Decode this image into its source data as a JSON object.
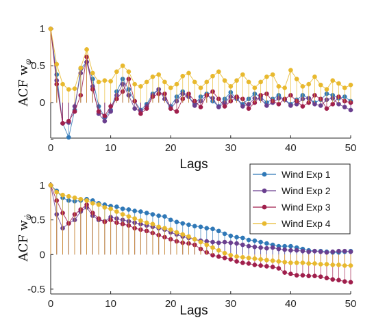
{
  "chart_data": [
    {
      "type": "stem",
      "ylabel": "ACF w_φ",
      "ylabel_main": "ACF w",
      "ylabel_sub": "φ",
      "xlabel": "Lags",
      "xlim": [
        0,
        50
      ],
      "ylim": [
        -0.48,
        1.02
      ],
      "xticks": [
        0,
        10,
        20,
        30,
        40,
        50
      ],
      "yticks": [
        -0.5,
        0,
        0.5,
        1
      ],
      "ytick_labels": [
        "",
        "0",
        "0.5",
        "1"
      ],
      "grid": false,
      "series": [
        {
          "name": "Wind Exp 1",
          "color": "#2f78b7",
          "values": [
            1.0,
            0.38,
            -0.28,
            -0.47,
            -0.1,
            0.46,
            0.55,
            0.32,
            -0.05,
            -0.2,
            -0.1,
            0.15,
            0.32,
            0.18,
            0.02,
            -0.1,
            -0.02,
            0.12,
            0.18,
            0.05,
            -0.05,
            0.08,
            0.15,
            0.08,
            -0.02,
            0.08,
            0.12,
            0.02,
            -0.05,
            0.05,
            0.14,
            0.05,
            -0.02,
            0.05,
            0.12,
            0.08,
            0.0,
            0.05,
            0.1,
            0.04,
            -0.02,
            0.04,
            0.1,
            0.06,
            0.0,
            0.04,
            0.12,
            0.1,
            0.06,
            0.08,
            0.02
          ]
        },
        {
          "name": "Wind Exp 2",
          "color": "#6a3f8f",
          "values": [
            1.0,
            0.3,
            -0.28,
            -0.27,
            -0.05,
            0.4,
            0.55,
            0.22,
            -0.15,
            -0.25,
            -0.12,
            0.1,
            0.25,
            0.1,
            -0.08,
            -0.12,
            -0.05,
            0.1,
            0.18,
            0.05,
            -0.08,
            0.02,
            0.12,
            0.08,
            -0.04,
            0.02,
            0.1,
            0.06,
            -0.06,
            0.0,
            0.08,
            0.06,
            -0.05,
            -0.02,
            0.06,
            0.05,
            -0.04,
            0.0,
            0.06,
            0.04,
            -0.04,
            -0.02,
            0.05,
            0.06,
            -0.02,
            -0.04,
            0.04,
            0.06,
            -0.02,
            -0.06,
            -0.1
          ]
        },
        {
          "name": "Wind Exp 3",
          "color": "#a01f4c",
          "values": [
            1.0,
            0.25,
            -0.28,
            -0.25,
            -0.12,
            0.1,
            0.62,
            0.18,
            -0.12,
            -0.18,
            -0.05,
            0.05,
            0.15,
            0.32,
            0.02,
            -0.15,
            -0.08,
            0.08,
            0.12,
            0.12,
            -0.08,
            -0.12,
            0.05,
            0.12,
            0.02,
            -0.06,
            0.1,
            0.15,
            0.05,
            -0.05,
            0.02,
            0.08,
            0.05,
            -0.08,
            0.0,
            0.1,
            0.12,
            0.02,
            -0.02,
            0.05,
            0.1,
            0.02,
            -0.05,
            0.0,
            0.1,
            0.05,
            -0.08,
            -0.02,
            0.08,
            0.02,
            0.0
          ]
        },
        {
          "name": "Wind Exp 4",
          "color": "#e8b92e",
          "values": [
            1.0,
            0.52,
            0.25,
            0.18,
            0.19,
            0.47,
            0.72,
            0.4,
            0.28,
            0.3,
            0.29,
            0.42,
            0.5,
            0.42,
            0.25,
            0.22,
            0.28,
            0.35,
            0.38,
            0.28,
            0.2,
            0.25,
            0.36,
            0.4,
            0.28,
            0.2,
            0.28,
            0.36,
            0.42,
            0.3,
            0.22,
            0.3,
            0.38,
            0.28,
            0.2,
            0.28,
            0.35,
            0.38,
            0.22,
            0.2,
            0.44,
            0.32,
            0.22,
            0.25,
            0.35,
            0.24,
            0.18,
            0.3,
            0.26,
            0.2,
            0.24
          ]
        }
      ]
    },
    {
      "type": "stem",
      "ylabel": "ACF w_φ̇",
      "ylabel_main": "ACF w",
      "ylabel_sub": "φ̇",
      "xlabel": "Lags",
      "xlim": [
        0,
        50
      ],
      "ylim": [
        -0.57,
        1.05
      ],
      "xticks": [
        0,
        10,
        20,
        30,
        40,
        50
      ],
      "yticks": [
        -0.5,
        0,
        0.5,
        1
      ],
      "ytick_labels": [
        "-0.5",
        "0",
        "0.5",
        "1"
      ],
      "grid": false,
      "legend": {
        "position": "top-right",
        "entries": [
          "Wind Exp 1",
          "Wind Exp 2",
          "Wind Exp 3",
          "Wind Exp 4"
        ]
      },
      "series": [
        {
          "name": "Wind Exp 1",
          "color": "#2f78b7",
          "values": [
            1.0,
            0.92,
            0.82,
            0.78,
            0.77,
            0.78,
            0.8,
            0.78,
            0.74,
            0.72,
            0.7,
            0.69,
            0.66,
            0.65,
            0.63,
            0.62,
            0.6,
            0.58,
            0.56,
            0.55,
            0.5,
            0.47,
            0.45,
            0.43,
            0.41,
            0.4,
            0.38,
            0.37,
            0.34,
            0.3,
            0.27,
            0.25,
            0.24,
            0.21,
            0.2,
            0.18,
            0.16,
            0.14,
            0.12,
            0.12,
            0.12,
            0.1,
            0.08,
            0.06,
            0.05,
            0.05,
            0.04,
            0.03,
            0.03,
            0.04,
            0.05
          ]
        },
        {
          "name": "Wind Exp 2",
          "color": "#6a3f8f",
          "values": [
            1.0,
            0.58,
            0.38,
            0.45,
            0.5,
            0.62,
            0.68,
            0.56,
            0.5,
            0.48,
            0.54,
            0.52,
            0.5,
            0.48,
            0.46,
            0.44,
            0.42,
            0.4,
            0.38,
            0.36,
            0.32,
            0.29,
            0.26,
            0.24,
            0.22,
            0.2,
            0.19,
            0.18,
            0.17,
            0.18,
            0.17,
            0.16,
            0.14,
            0.12,
            0.11,
            0.1,
            0.09,
            0.1,
            0.08,
            0.07,
            0.06,
            0.06,
            0.05,
            0.04,
            0.05,
            0.04,
            0.03,
            0.04,
            0.05,
            0.05,
            0.04
          ]
        },
        {
          "name": "Wind Exp 3",
          "color": "#a01f4c",
          "values": [
            1.0,
            0.78,
            0.6,
            0.45,
            0.58,
            0.65,
            0.72,
            0.6,
            0.52,
            0.47,
            0.5,
            0.46,
            0.44,
            0.42,
            0.38,
            0.36,
            0.34,
            0.31,
            0.28,
            0.25,
            0.22,
            0.19,
            0.17,
            0.16,
            0.14,
            0.08,
            0.03,
            -0.01,
            -0.03,
            -0.05,
            -0.07,
            -0.1,
            -0.12,
            -0.13,
            -0.15,
            -0.16,
            -0.17,
            -0.18,
            -0.2,
            -0.26,
            -0.28,
            -0.3,
            -0.3,
            -0.31,
            -0.31,
            -0.32,
            -0.34,
            -0.36,
            -0.37,
            -0.39,
            -0.4
          ]
        },
        {
          "name": "Wind Exp 4",
          "color": "#e8b92e",
          "values": [
            1.0,
            0.9,
            0.86,
            0.84,
            0.82,
            0.8,
            0.78,
            0.74,
            0.72,
            0.68,
            0.66,
            0.62,
            0.58,
            0.55,
            0.52,
            0.49,
            0.46,
            0.44,
            0.4,
            0.38,
            0.36,
            0.32,
            0.29,
            0.26,
            0.22,
            0.18,
            0.14,
            0.1,
            0.06,
            0.02,
            -0.01,
            -0.03,
            -0.04,
            -0.05,
            -0.06,
            -0.07,
            -0.08,
            -0.09,
            -0.1,
            -0.11,
            -0.12,
            -0.12,
            -0.12,
            -0.13,
            -0.13,
            -0.14,
            -0.14,
            -0.15,
            -0.15,
            -0.16,
            -0.16
          ]
        }
      ]
    }
  ]
}
